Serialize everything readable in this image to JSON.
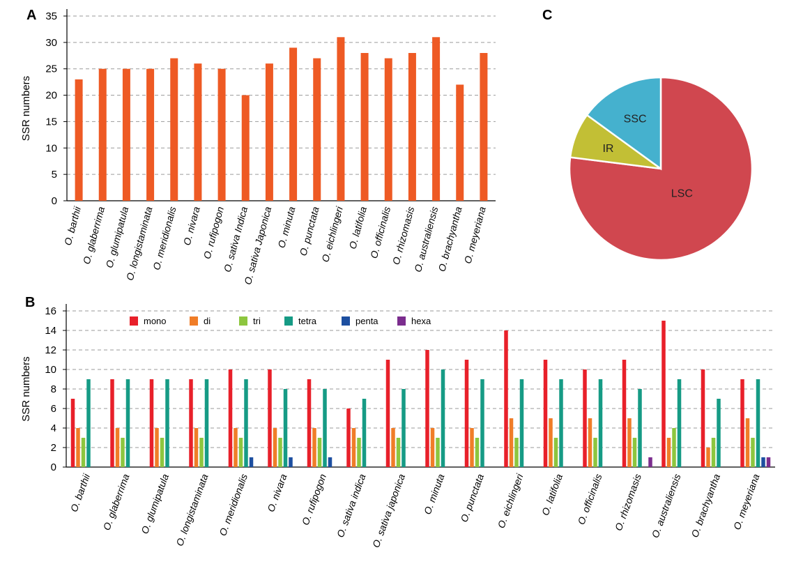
{
  "chart_data": [
    {
      "panel": "A",
      "type": "bar",
      "ylabel": "SSR numbers",
      "ylim": [
        0,
        35
      ],
      "yticks": [
        0,
        5,
        10,
        15,
        20,
        25,
        30,
        35
      ],
      "grid": "dashed horizontal",
      "color": "#ee5a24",
      "categories": [
        "O. barthii",
        "O. glaberrima",
        "O. glumipatula",
        "O. longistaminata",
        "O. meridionalis",
        "O. nivara",
        "O. rufipogon",
        "O. sativa Indica",
        "O. sativa Japonica",
        "O. minuta",
        "O. punctata",
        "O. eichlingeri",
        "O. latifolia",
        "O. officinalis",
        "O. rhizomasis",
        "O. australiensis",
        "O. brachyantha",
        "O. meyeriana"
      ],
      "values": [
        23,
        25,
        25,
        25,
        27,
        26,
        25,
        20,
        26,
        29,
        27,
        31,
        28,
        27,
        28,
        31,
        22,
        28
      ]
    },
    {
      "panel": "B",
      "type": "bar",
      "ylabel": "SSR numbers",
      "ylim": [
        0,
        16
      ],
      "yticks": [
        0,
        2,
        4,
        6,
        8,
        10,
        12,
        14,
        16
      ],
      "grid": "dashed horizontal",
      "legend": "top-left",
      "categories": [
        "O. barthii",
        "O. glaberrima",
        "O. glumipatula",
        "O. longistaminata",
        "O. meridionalis",
        "O. nivara",
        "O. rufipogon",
        "O. sativa indica",
        "O. sativa japonica",
        "O. minuta",
        "O. punctata",
        "O. eichlingeri",
        "O. latifolia",
        "O. officinalis",
        "O. rhizomasis",
        "O. australiensis",
        "O. brachyantha",
        "O. meyeriana"
      ],
      "series": [
        {
          "name": "mono",
          "color": "#e8202a",
          "values": [
            7,
            9,
            9,
            9,
            10,
            10,
            9,
            6,
            11,
            12,
            11,
            14,
            11,
            10,
            11,
            15,
            10,
            9
          ]
        },
        {
          "name": "di",
          "color": "#f07d28",
          "values": [
            4,
            4,
            4,
            4,
            4,
            4,
            4,
            4,
            4,
            4,
            4,
            5,
            5,
            5,
            5,
            3,
            2,
            5
          ]
        },
        {
          "name": "tri",
          "color": "#8dc63f",
          "values": [
            3,
            3,
            3,
            3,
            3,
            3,
            3,
            3,
            3,
            3,
            3,
            3,
            3,
            3,
            3,
            4,
            3,
            3
          ]
        },
        {
          "name": "tetra",
          "color": "#169b85",
          "values": [
            9,
            9,
            9,
            9,
            9,
            8,
            8,
            7,
            8,
            10,
            9,
            9,
            9,
            9,
            8,
            9,
            7,
            9
          ]
        },
        {
          "name": "penta",
          "color": "#1d4fa0",
          "values": [
            0,
            0,
            0,
            0,
            1,
            1,
            1,
            0,
            0,
            0,
            0,
            0,
            0,
            0,
            0,
            0,
            0,
            1
          ]
        },
        {
          "name": "hexa",
          "color": "#7b2d8e",
          "values": [
            0,
            0,
            0,
            0,
            0,
            0,
            0,
            0,
            0,
            0,
            0,
            0,
            0,
            0,
            1,
            0,
            0,
            1
          ]
        }
      ]
    },
    {
      "panel": "C",
      "type": "pie",
      "slices": [
        {
          "label": "LSC",
          "value": 77,
          "color": "#d0474f"
        },
        {
          "label": "IR",
          "value": 8,
          "color": "#c2bf35"
        },
        {
          "label": "SSC",
          "value": 15,
          "color": "#45b1ce"
        }
      ]
    }
  ]
}
